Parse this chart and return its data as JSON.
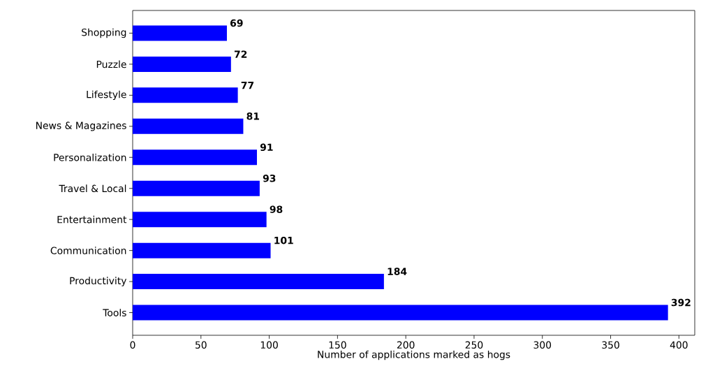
{
  "chart_data": {
    "type": "bar",
    "orientation": "horizontal",
    "xlabel": "Number of applications marked as hogs",
    "categories": [
      "Shopping",
      "Puzzle",
      "Lifestyle",
      "News & Magazines",
      "Personalization",
      "Travel & Local",
      "Entertainment",
      "Communication",
      "Productivity",
      "Tools"
    ],
    "values": [
      69,
      72,
      77,
      81,
      91,
      93,
      98,
      101,
      184,
      392
    ],
    "color": "#0000ff",
    "data_labels": true,
    "xlim": [
      0,
      411.6
    ],
    "xticks": [
      0,
      50,
      100,
      150,
      200,
      250,
      300,
      350,
      400
    ]
  }
}
